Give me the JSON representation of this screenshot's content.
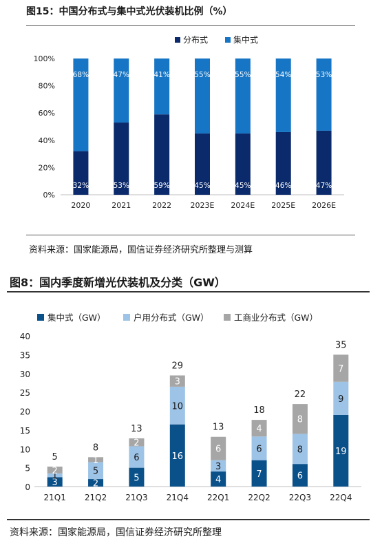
{
  "chart_data": [
    {
      "type": "bar",
      "stacked": true,
      "percent": true,
      "title": "图15：中国分布式与集中式光伏装机比例（%）",
      "source": "资料来源：国家能源局，国信证券经济研究所整理与测算",
      "categories": [
        "2020",
        "2021",
        "2022",
        "2023E",
        "2024E",
        "2025E",
        "2026E"
      ],
      "series": [
        {
          "name": "分布式",
          "color": "#0b2a6b",
          "values": [
            32,
            53,
            59,
            45,
            45,
            46,
            47
          ],
          "labels": [
            "32%",
            "53%",
            "59%",
            "45%",
            "45%",
            "46%",
            "47%"
          ]
        },
        {
          "name": "集中式",
          "color": "#1675c4",
          "values": [
            68,
            47,
            41,
            55,
            55,
            54,
            53
          ],
          "labels": [
            "68%",
            "47%",
            "41%",
            "55%",
            "55%",
            "54%",
            "53%"
          ]
        }
      ],
      "ylim": [
        0,
        100
      ],
      "yticks": [
        "0%",
        "20%",
        "40%",
        "60%",
        "80%",
        "100%"
      ],
      "legend": "top"
    },
    {
      "type": "bar",
      "stacked": true,
      "title": "图8：国内季度新增光伏装机及分类（GW）",
      "source": "资料来源：国家能源局，国信证券经济研究所整理",
      "categories": [
        "21Q1",
        "21Q2",
        "21Q3",
        "21Q4",
        "22Q1",
        "22Q2",
        "22Q3",
        "22Q4"
      ],
      "series": [
        {
          "name": "集中式（GW）",
          "color": "#0a5089",
          "values": [
            2.5,
            2,
            5,
            16.5,
            4,
            7,
            6,
            19
          ],
          "labels": [
            "3",
            "2",
            "5",
            "16",
            "4",
            "7",
            "6",
            "19"
          ]
        },
        {
          "name": "户用分布式（GW）",
          "color": "#9dc3e6",
          "values": [
            1,
            4.5,
            5.7,
            10,
            3,
            6.3,
            8,
            8.8
          ],
          "labels": [
            "1",
            "5",
            "6",
            "10",
            "3",
            "6",
            "8",
            "9"
          ]
        },
        {
          "name": "工商业分布式（GW）",
          "color": "#a6a6a6",
          "values": [
            1.8,
            1.3,
            2.1,
            3,
            6.2,
            4.4,
            7.9,
            7.2
          ],
          "labels": [
            "2",
            "1",
            "2",
            "3",
            "6",
            "4",
            "8",
            "7"
          ]
        }
      ],
      "totals": [
        "5",
        "8",
        "13",
        "29",
        "13",
        "18",
        "22",
        "35"
      ],
      "ylim": [
        0,
        40
      ],
      "yticks": [
        "0",
        "5",
        "10",
        "15",
        "20",
        "25",
        "30",
        "35",
        "40"
      ],
      "legend": "top"
    }
  ]
}
